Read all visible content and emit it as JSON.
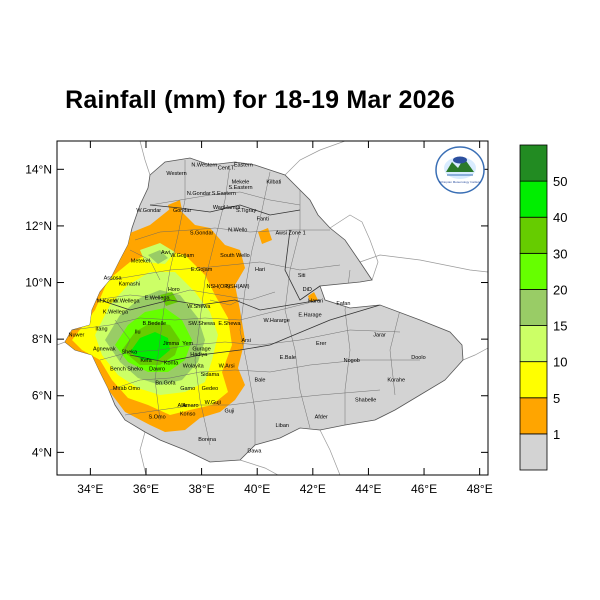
{
  "title": "Rainfall (mm) for 18-19 Mar 2026",
  "axes": {
    "x_ticks": [
      "34°E",
      "36°E",
      "38°E",
      "40°E",
      "42°E",
      "44°E",
      "46°E",
      "48°E"
    ],
    "y_ticks": [
      "4°N",
      "6°N",
      "8°N",
      "10°N",
      "12°N",
      "14°N"
    ]
  },
  "colorbar": {
    "labels": [
      "1",
      "5",
      "10",
      "15",
      "20",
      "30",
      "40",
      "50"
    ],
    "colors": [
      "#d3d3d3",
      "#ffa500",
      "#ffff00",
      "#ccff66",
      "#99cc66",
      "#66ff00",
      "#66cc00",
      "#00ee00",
      "#228b22"
    ]
  },
  "logo": {
    "text": "Ethiopian Meteorology Institute"
  },
  "zones": [
    {
      "name": "N.Western",
      "lon": 38.1,
      "lat": 14.1
    },
    {
      "name": "Cent.T.",
      "lon": 38.9,
      "lat": 14.0
    },
    {
      "name": "Eastern",
      "lon": 39.5,
      "lat": 14.1
    },
    {
      "name": "Western",
      "lon": 37.1,
      "lat": 13.8
    },
    {
      "name": "Mekele",
      "lon": 39.4,
      "lat": 13.5
    },
    {
      "name": "S.Eastern",
      "lon": 39.4,
      "lat": 13.3
    },
    {
      "name": "Kilbati",
      "lon": 40.6,
      "lat": 13.5
    },
    {
      "name": "N.Gondar",
      "lon": 37.9,
      "lat": 13.1
    },
    {
      "name": "S.Eastern",
      "lon": 38.8,
      "lat": 13.1
    },
    {
      "name": "Gondar",
      "lon": 37.3,
      "lat": 12.5
    },
    {
      "name": "WagHamra",
      "lon": 38.9,
      "lat": 12.6
    },
    {
      "name": "S.Tigray",
      "lon": 39.6,
      "lat": 12.5
    },
    {
      "name": "W.Gondar",
      "lon": 36.1,
      "lat": 12.5
    },
    {
      "name": "Fanti",
      "lon": 40.2,
      "lat": 12.2
    },
    {
      "name": "N.Wello",
      "lon": 39.3,
      "lat": 11.8
    },
    {
      "name": "Awsi Zone 1",
      "lon": 41.2,
      "lat": 11.7
    },
    {
      "name": "S.Gondar",
      "lon": 38.0,
      "lat": 11.7
    },
    {
      "name": "Awi",
      "lon": 36.7,
      "lat": 11.0
    },
    {
      "name": "W.Gojjam",
      "lon": 37.3,
      "lat": 10.9
    },
    {
      "name": "Metekel",
      "lon": 35.8,
      "lat": 10.7
    },
    {
      "name": "South Wello",
      "lon": 39.2,
      "lat": 10.9
    },
    {
      "name": "E.Gojam",
      "lon": 38.0,
      "lat": 10.4
    },
    {
      "name": "Hari",
      "lon": 40.1,
      "lat": 10.4
    },
    {
      "name": "Siti",
      "lon": 41.6,
      "lat": 10.2
    },
    {
      "name": "Assosa",
      "lon": 34.8,
      "lat": 10.1
    },
    {
      "name": "Kamashi",
      "lon": 35.4,
      "lat": 9.9
    },
    {
      "name": "Horo",
      "lon": 37.0,
      "lat": 9.7
    },
    {
      "name": "NSH(OR)",
      "lon": 38.6,
      "lat": 9.8
    },
    {
      "name": "NSH(AM)",
      "lon": 39.3,
      "lat": 9.8
    },
    {
      "name": "DiD",
      "lon": 41.8,
      "lat": 9.7
    },
    {
      "name": "Harari",
      "lon": 42.1,
      "lat": 9.3
    },
    {
      "name": "Fafan",
      "lon": 43.1,
      "lat": 9.2
    },
    {
      "name": "M.Komo",
      "lon": 34.6,
      "lat": 9.3
    },
    {
      "name": "W.Wellega",
      "lon": 35.3,
      "lat": 9.3
    },
    {
      "name": "E.Wellega",
      "lon": 36.4,
      "lat": 9.4
    },
    {
      "name": "W.Shewa",
      "lon": 37.9,
      "lat": 9.1
    },
    {
      "name": "E.Harage",
      "lon": 41.9,
      "lat": 8.8
    },
    {
      "name": "K.Wellega",
      "lon": 34.9,
      "lat": 8.9
    },
    {
      "name": "W.Hararge",
      "lon": 40.7,
      "lat": 8.6
    },
    {
      "name": "SW.Shewa",
      "lon": 38.0,
      "lat": 8.5
    },
    {
      "name": "E.Shewa",
      "lon": 39.0,
      "lat": 8.5
    },
    {
      "name": "B.Bedelle",
      "lon": 36.3,
      "lat": 8.5
    },
    {
      "name": "Ilu",
      "lon": 35.7,
      "lat": 8.2
    },
    {
      "name": "Itang",
      "lon": 34.4,
      "lat": 8.3
    },
    {
      "name": "Nuwer",
      "lon": 33.5,
      "lat": 8.1
    },
    {
      "name": "Jarar",
      "lon": 44.4,
      "lat": 8.1
    },
    {
      "name": "Arsi",
      "lon": 39.6,
      "lat": 7.9
    },
    {
      "name": "Erer",
      "lon": 42.3,
      "lat": 7.8
    },
    {
      "name": "Jimma",
      "lon": 36.9,
      "lat": 7.8
    },
    {
      "name": "Yem",
      "lon": 37.5,
      "lat": 7.8
    },
    {
      "name": "Gurage",
      "lon": 38.0,
      "lat": 7.6
    },
    {
      "name": "Hadiya",
      "lon": 37.9,
      "lat": 7.4
    },
    {
      "name": "Agnewak",
      "lon": 34.5,
      "lat": 7.6
    },
    {
      "name": "Sheka",
      "lon": 35.4,
      "lat": 7.5
    },
    {
      "name": "Kefa",
      "lon": 36.0,
      "lat": 7.2
    },
    {
      "name": "Konta",
      "lon": 36.9,
      "lat": 7.1
    },
    {
      "name": "Wolayita",
      "lon": 37.7,
      "lat": 7.0
    },
    {
      "name": "W.Arsi",
      "lon": 38.9,
      "lat": 7.0
    },
    {
      "name": "E.Bale",
      "lon": 41.1,
      "lat": 7.3
    },
    {
      "name": "Nogob",
      "lon": 43.4,
      "lat": 7.2
    },
    {
      "name": "Doolo",
      "lon": 45.8,
      "lat": 7.3
    },
    {
      "name": "Bench Sheko",
      "lon": 35.3,
      "lat": 6.9
    },
    {
      "name": "Dawro",
      "lon": 36.4,
      "lat": 6.9
    },
    {
      "name": "Sidama",
      "lon": 38.3,
      "lat": 6.7
    },
    {
      "name": "Bale",
      "lon": 40.1,
      "lat": 6.5
    },
    {
      "name": "Korahe",
      "lon": 45.0,
      "lat": 6.5
    },
    {
      "name": "Mirab Omo",
      "lon": 35.3,
      "lat": 6.2
    },
    {
      "name": "Gamo",
      "lon": 37.5,
      "lat": 6.2
    },
    {
      "name": "Gedeo",
      "lon": 38.3,
      "lat": 6.2
    },
    {
      "name": "Bn.Gofa",
      "lon": 36.7,
      "lat": 6.4
    },
    {
      "name": "Shabelle",
      "lon": 43.9,
      "lat": 5.8
    },
    {
      "name": "Amaro",
      "lon": 37.6,
      "lat": 5.6
    },
    {
      "name": "W.Guji",
      "lon": 38.4,
      "lat": 5.7
    },
    {
      "name": "Guji",
      "lon": 39.0,
      "lat": 5.4
    },
    {
      "name": "Konso",
      "lon": 37.5,
      "lat": 5.3
    },
    {
      "name": "S.Omo",
      "lon": 36.4,
      "lat": 5.2
    },
    {
      "name": "Alle",
      "lon": 37.3,
      "lat": 5.6
    },
    {
      "name": "Liban",
      "lon": 40.9,
      "lat": 4.9
    },
    {
      "name": "Afder",
      "lon": 42.3,
      "lat": 5.2
    },
    {
      "name": "Borena",
      "lon": 38.2,
      "lat": 4.4
    },
    {
      "name": "Dawa",
      "lon": 39.9,
      "lat": 4.0
    }
  ]
}
